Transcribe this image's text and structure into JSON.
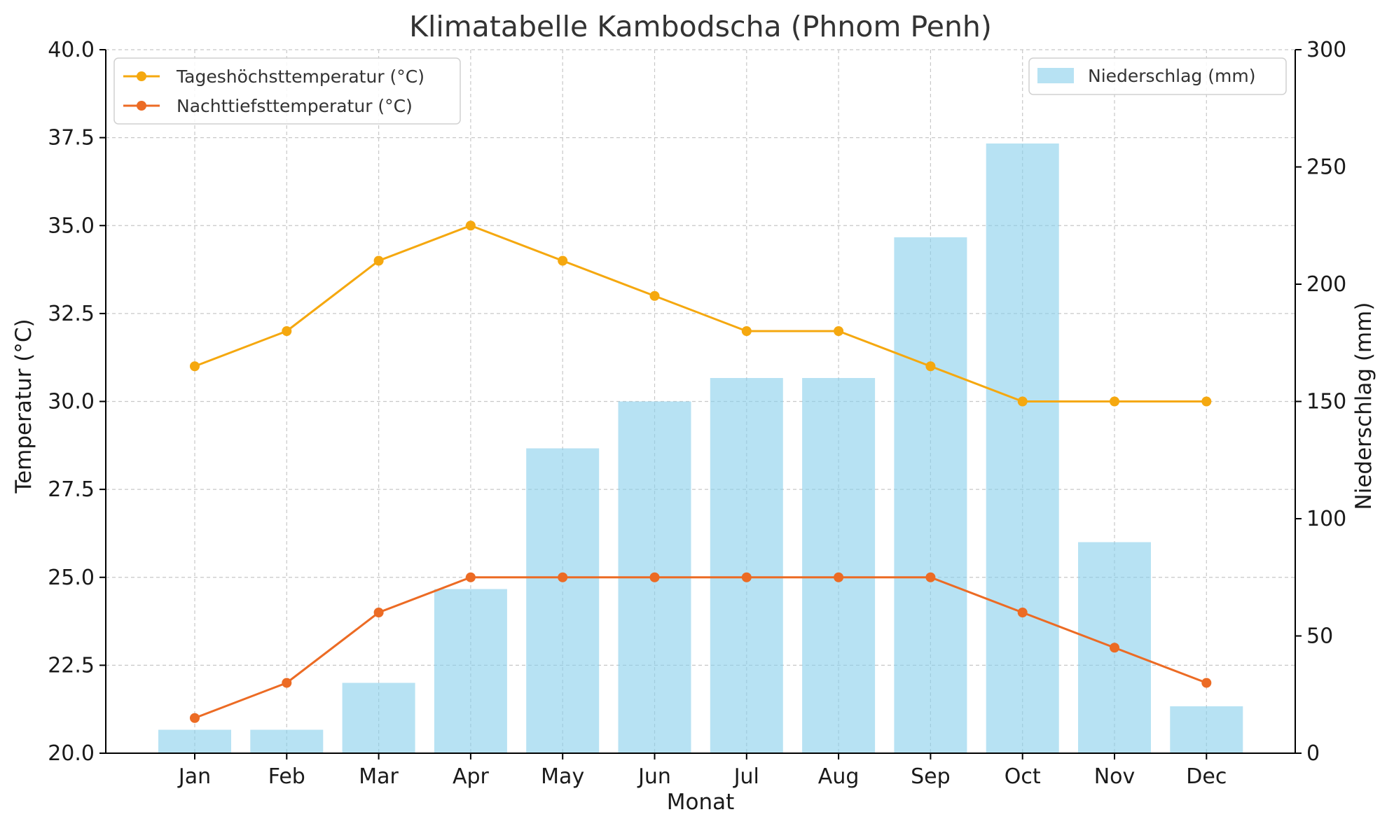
{
  "chart_data": {
    "type": "bar",
    "title": "Klimatabelle Kambodscha (Phnom Penh)",
    "xlabel": "Monat",
    "ylabel": "Temperatur (°C)",
    "y2label": "Niederschlag (mm)",
    "categories": [
      "Jan",
      "Feb",
      "Mar",
      "Apr",
      "May",
      "Jun",
      "Jul",
      "Aug",
      "Sep",
      "Oct",
      "Nov",
      "Dec"
    ],
    "ylim": [
      20,
      40
    ],
    "y2lim": [
      0,
      300
    ],
    "yticks": [
      "20.0",
      "22.5",
      "25.0",
      "27.5",
      "30.0",
      "32.5",
      "35.0",
      "37.5",
      "40.0"
    ],
    "y2ticks": [
      "0",
      "50",
      "100",
      "150",
      "200",
      "250",
      "300"
    ],
    "grid": true,
    "series": [
      {
        "name": "Tageshöchsttemperatur (°C)",
        "type": "line",
        "axis": "left",
        "color": "#f5a80f",
        "values": [
          31,
          32,
          34,
          35,
          34,
          33,
          32,
          32,
          31,
          30,
          30,
          30
        ]
      },
      {
        "name": "Nachttiefsttemperatur (°C)",
        "type": "line",
        "axis": "left",
        "color": "#ec6b24",
        "values": [
          21,
          22,
          24,
          25,
          25,
          25,
          25,
          25,
          25,
          24,
          23,
          22
        ]
      },
      {
        "name": "Niederschlag (mm)",
        "type": "bar",
        "axis": "right",
        "color": "#87ceeb",
        "values": [
          10,
          10,
          30,
          70,
          130,
          150,
          160,
          160,
          220,
          260,
          90,
          20
        ]
      }
    ],
    "legend_left_placement": "top-left",
    "legend_right_placement": "top-right"
  }
}
